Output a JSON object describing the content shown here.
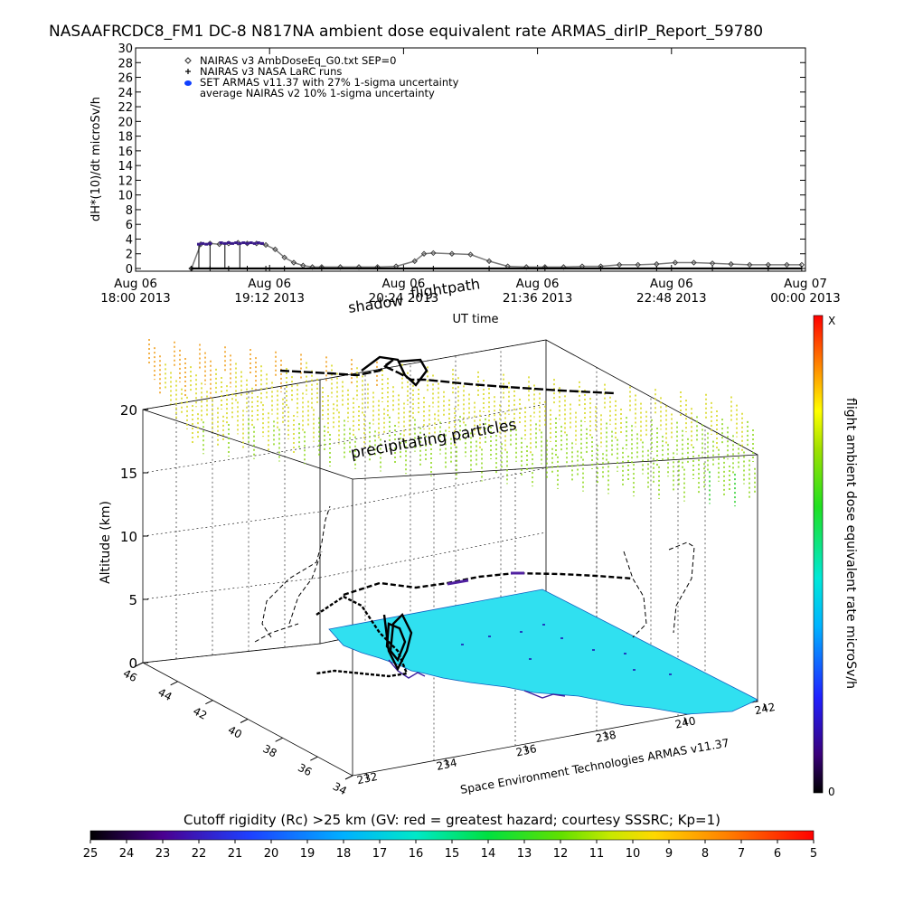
{
  "title": "NASAAFRCDC8_FM1 DC-8   N817NA ambient dose equivalent rate ARMAS_dirIP_Report_59780",
  "colors": {
    "nairas_v3": "#404040",
    "larc": "#000000",
    "armas": "#3a1a8a",
    "nairas_v2_band": "#7a7a7a",
    "ground": "#30e0f0",
    "flightpath": "#000000"
  },
  "chart_data": [
    {
      "type": "line",
      "title": "",
      "ylabel": "dH*(10)/dt microSv/h",
      "xlabel": "UT time",
      "ylim": [
        0,
        30
      ],
      "yticks": [
        0,
        2,
        4,
        6,
        8,
        10,
        12,
        14,
        16,
        18,
        20,
        22,
        24,
        26,
        28,
        30
      ],
      "xlim": [
        0,
        360
      ],
      "xticks": [
        {
          "minutes": 0,
          "line1": "Aug 06",
          "line2": "18:00 2013"
        },
        {
          "minutes": 72,
          "line1": "Aug 06",
          "line2": "19:12 2013"
        },
        {
          "minutes": 144,
          "line1": "Aug 06",
          "line2": "20:24 2013"
        },
        {
          "minutes": 216,
          "line1": "Aug 06",
          "line2": "21:36 2013"
        },
        {
          "minutes": 288,
          "line1": "Aug 06",
          "line2": "22:48 2013"
        },
        {
          "minutes": 360,
          "line1": "Aug 07",
          "line2": "00:00 2013"
        }
      ],
      "legend": [
        {
          "symbol": "diamond",
          "label": "NAIRAS v3 AmbDoseEq_G0.txt SEP=0"
        },
        {
          "symbol": "plus",
          "label": "NAIRAS v3 NASA LaRC runs"
        },
        {
          "symbol": "blue-dot",
          "label": "SET ARMAS v11.37 with 27% 1-sigma uncertainty"
        },
        {
          "symbol": "none",
          "label": "average NAIRAS v2 10% 1-sigma uncertainty"
        }
      ],
      "series": [
        {
          "name": "NAIRAS v3 AmbDoseEq_G0.txt SEP=0",
          "x": [
            30,
            35,
            40,
            45,
            50,
            55,
            60,
            65,
            70,
            75,
            80,
            85,
            90,
            95,
            100,
            110,
            120,
            130,
            140,
            150,
            155,
            160,
            170,
            180,
            190,
            200,
            210,
            220,
            230,
            240,
            250,
            260,
            270,
            280,
            290,
            300,
            310,
            320,
            330,
            340,
            350,
            358
          ],
          "y": [
            0,
            3.3,
            3.4,
            3.3,
            3.4,
            3.5,
            3.4,
            3.4,
            3.2,
            2.6,
            1.5,
            0.8,
            0.4,
            0.2,
            0.2,
            0.2,
            0.2,
            0.2,
            0.3,
            1.0,
            2.0,
            2.1,
            2.0,
            1.9,
            1.0,
            0.3,
            0.2,
            0.2,
            0.2,
            0.3,
            0.3,
            0.5,
            0.5,
            0.6,
            0.8,
            0.8,
            0.7,
            0.6,
            0.5,
            0.5,
            0.5,
            0.5
          ]
        },
        {
          "name": "NAIRAS v3 NASA LaRC runs",
          "x": [
            30,
            40,
            50,
            60,
            70,
            80,
            100,
            130,
            160,
            190,
            220,
            250,
            280,
            310,
            340,
            358
          ],
          "y": [
            0,
            0,
            0,
            0,
            0,
            0,
            0,
            0,
            0,
            0,
            0,
            0,
            0,
            0,
            0,
            0
          ]
        },
        {
          "name": "SET ARMAS v11.37 with 27% 1-sigma uncertainty",
          "x": [
            34,
            36,
            38,
            40,
            46,
            48,
            50,
            52,
            54,
            56,
            58,
            60,
            62,
            64,
            66,
            68
          ],
          "y": [
            3.3,
            3.4,
            3.3,
            3.4,
            3.5,
            3.4,
            3.5,
            3.4,
            3.5,
            3.4,
            3.5,
            3.4,
            3.5,
            3.4,
            3.5,
            3.4
          ]
        }
      ]
    },
    {
      "type": "scatter",
      "title": "",
      "zlabel": "Altitude (km)",
      "zticks": [
        0,
        5,
        10,
        15,
        20
      ],
      "lat_ticks": [
        34,
        36,
        38,
        40,
        42,
        44,
        46
      ],
      "lon_ticks": [
        232,
        234,
        236,
        238,
        240,
        242
      ],
      "annotations": [
        "shadow",
        "flightpath",
        "precipitating particles",
        "Space Environment Technologies ARMAS v11.37"
      ]
    }
  ],
  "colorbar_right": {
    "label": "flight ambient dose equivalent rate microSv/h",
    "top": "X",
    "bottom": "0"
  },
  "colorbar_bottom": {
    "label": "Cutoff rigidity (Rc) >25 km (GV: red = greatest hazard; courtesy SSSRC; Kp=1)",
    "ticks": [
      "25",
      "24",
      "23",
      "22",
      "21",
      "20",
      "19",
      "18",
      "17",
      "16",
      "15",
      "14",
      "13",
      "12",
      "11",
      "10",
      "9",
      "8",
      "7",
      "6",
      "5"
    ]
  }
}
